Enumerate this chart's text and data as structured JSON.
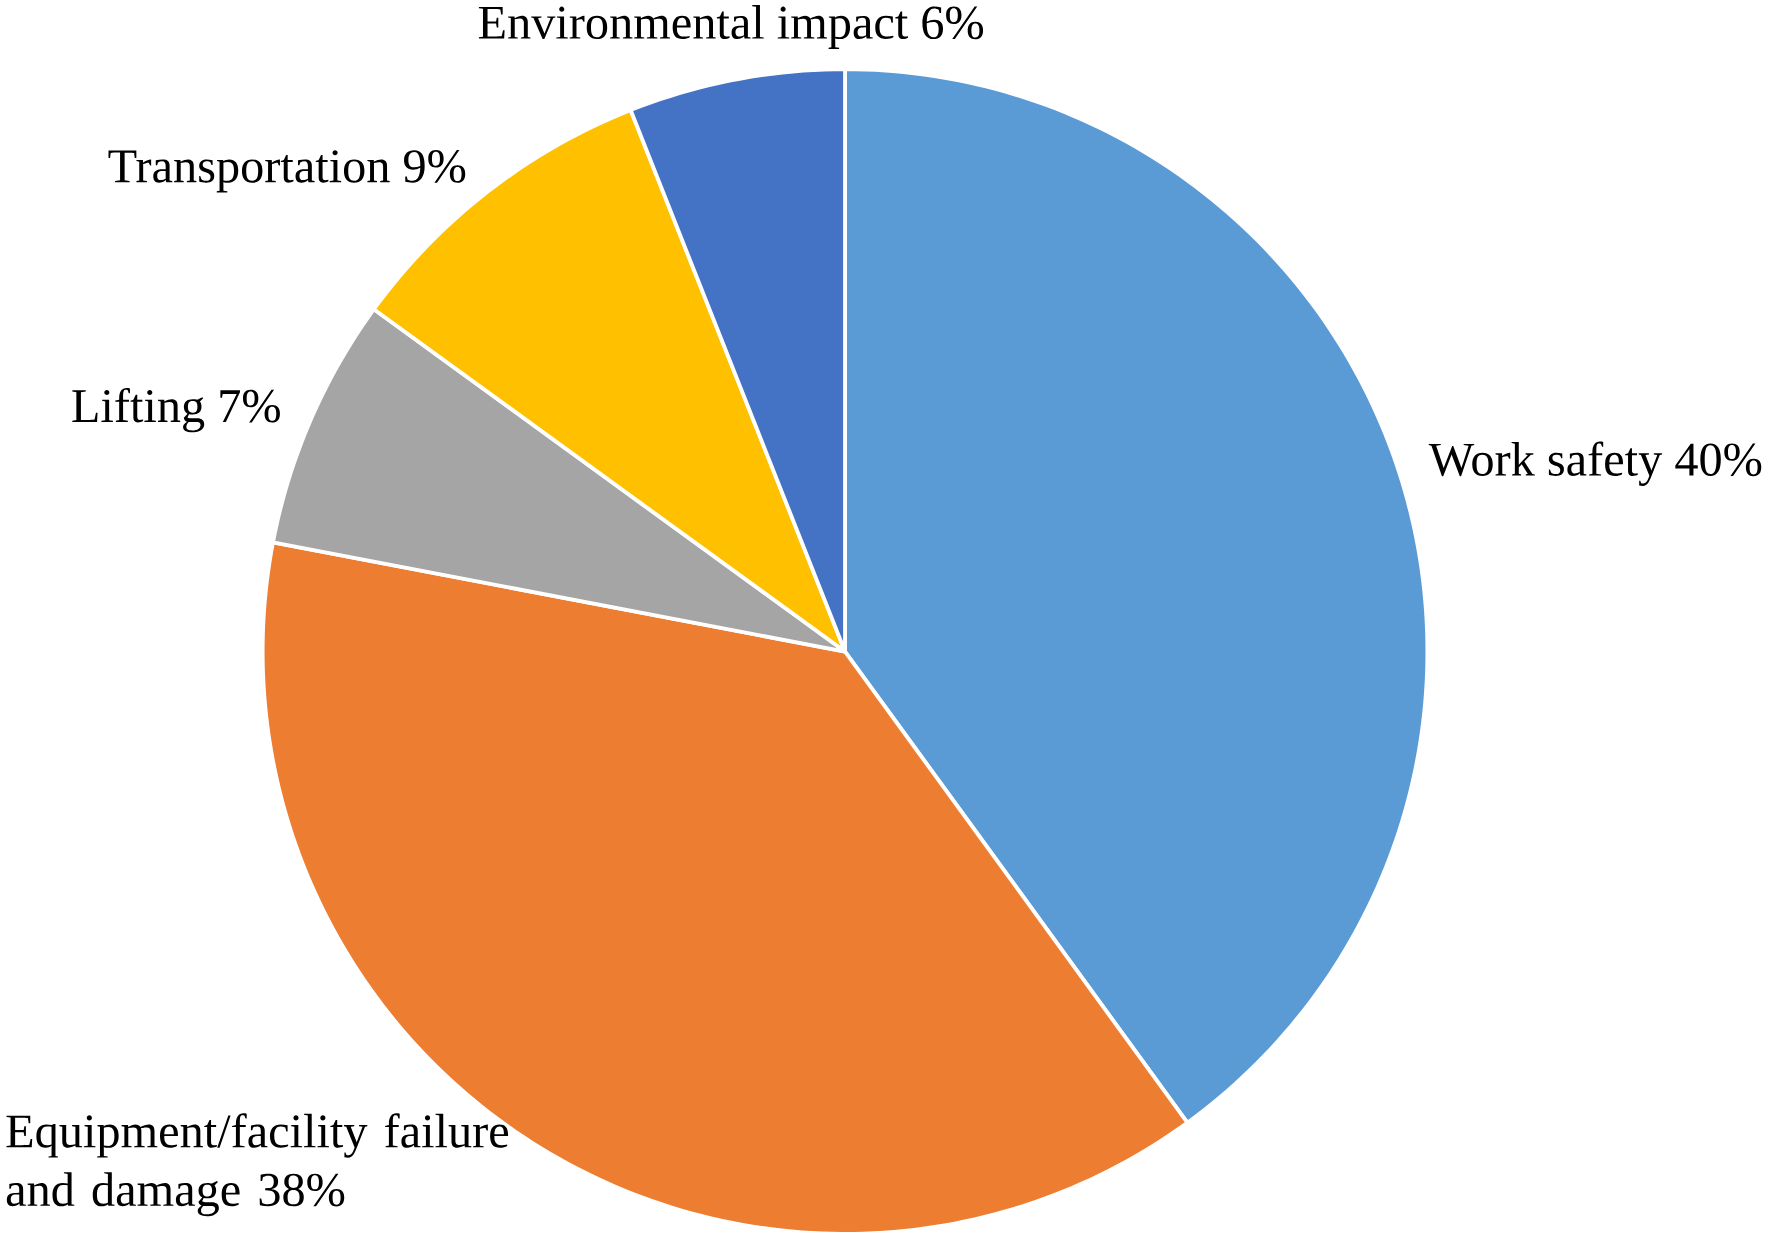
{
  "chart_data": {
    "type": "pie",
    "categories": [
      "Work safety",
      "Equipment/facility failure and damage",
      "Lifting",
      "Transportation",
      "Environmental impact"
    ],
    "values": [
      40,
      38,
      7,
      9,
      6
    ],
    "colors": [
      "#5b9bd5",
      "#ed7d31",
      "#a5a5a5",
      "#ffc000",
      "#4472c4"
    ],
    "value_labels": [
      "40%",
      "38%",
      "7%",
      "9%",
      "6%"
    ]
  }
}
